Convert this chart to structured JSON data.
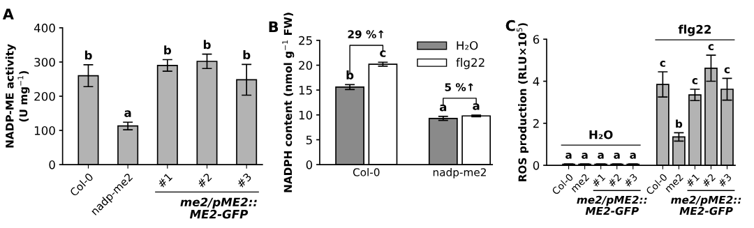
{
  "chart_data": [
    {
      "type": "bar",
      "title": "A",
      "ylabel": "NADP-ME activity\n(U mg$^{−1}$)",
      "categories": [
        "Col-0",
        "nadp-me2",
        "#1",
        "#2",
        "#3"
      ],
      "values": [
        260,
        113,
        290,
        302,
        248
      ],
      "errors": [
        32,
        11,
        17,
        21,
        45
      ],
      "value_labels": [
        "b",
        "a",
        "b",
        "b",
        "b"
      ],
      "color": "#b3b3b3",
      "ylim": [
        0,
        400
      ],
      "yticks": [
        0,
        100,
        200,
        300,
        400
      ],
      "grid": false,
      "annotations": [
        "me2/pME2::\nME2-GFP"
      ]
    },
    {
      "type": "bar",
      "title": "B",
      "ylabel": "NADPH content (nmol g$^{−1}$ FW)",
      "categories": [
        "Col-0",
        "nadp-me2"
      ],
      "series": [
        {
          "name": "H₂O",
          "color": "#8a8a8a",
          "values": [
            15.6,
            9.3
          ],
          "errors": [
            0.5,
            0.4
          ],
          "value_labels": [
            "b",
            "a"
          ]
        },
        {
          "name": "flg22",
          "color": "#ffffff",
          "values": [
            20.2,
            9.8
          ],
          "errors": [
            0.4,
            0.15
          ],
          "value_labels": [
            "c",
            "a"
          ]
        }
      ],
      "ylim": [
        0,
        25
      ],
      "yticks": [
        0,
        5,
        10,
        15,
        20,
        25
      ],
      "grid": false,
      "legend": "top right",
      "annotations": [
        "29 %↑",
        "5 %↑"
      ]
    },
    {
      "type": "bar",
      "title": "C",
      "ylabel": "ROS production (RLU×10$^{5}$)",
      "categories": [
        "Col-0",
        "me2",
        "#1",
        "#2",
        "#3",
        "Col-0",
        "me2",
        "#1",
        "#2",
        "#3"
      ],
      "values": [
        0.05,
        0.05,
        0.05,
        0.05,
        0.05,
        3.85,
        1.35,
        3.35,
        4.62,
        3.62
      ],
      "errors": [
        0.02,
        0.02,
        0.02,
        0.02,
        0.02,
        0.6,
        0.2,
        0.27,
        0.62,
        0.52
      ],
      "value_labels": [
        "a",
        "a",
        "a",
        "a",
        "a",
        "c",
        "b",
        "c",
        "c",
        "c"
      ],
      "color": "#b3b3b3",
      "ylim": [
        0,
        6
      ],
      "yticks": [
        0,
        2,
        4,
        6
      ],
      "grid": false,
      "annotations": [
        "H₂O",
        "flg22",
        "me2/pME2::\nME2-GFP",
        "me2/pME2::\nME2-GFP"
      ]
    }
  ]
}
